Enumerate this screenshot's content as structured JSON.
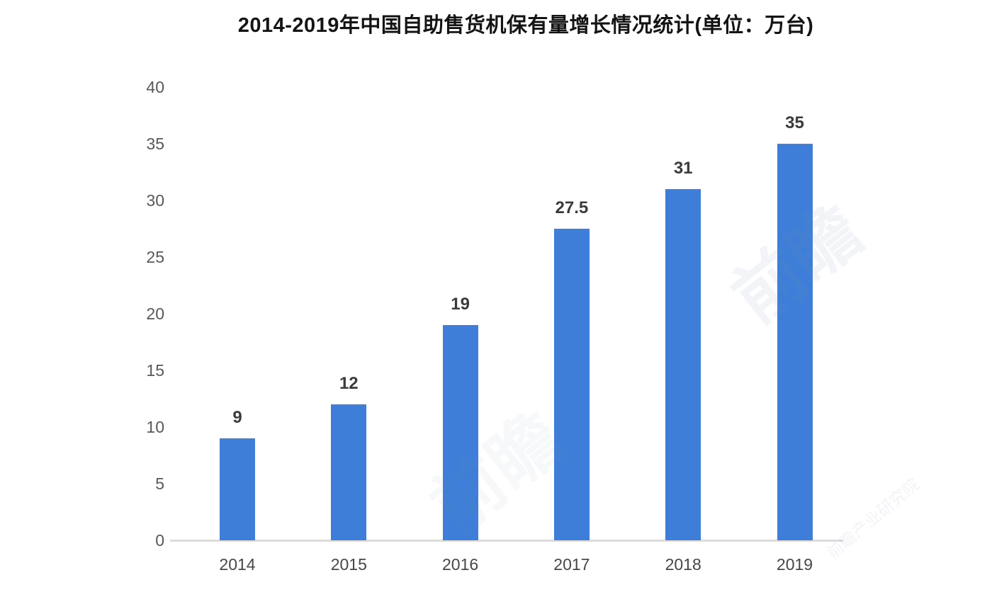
{
  "title": "2014-2019年中国自助售货机保有量增长情况统计(单位：万台)",
  "chart_data": {
    "type": "bar",
    "title": "2014-2019年中国自助售货机保有量增长情况统计(单位：万台)",
    "unit_note": "单位：万台",
    "categories": [
      "2014",
      "2015",
      "2016",
      "2017",
      "2018",
      "2019"
    ],
    "values": [
      9,
      12,
      19,
      27.5,
      31,
      35
    ],
    "value_labels": [
      "9",
      "12",
      "19",
      "27.5",
      "31",
      "35"
    ],
    "xlabel": "",
    "ylabel": "",
    "ylim": [
      0,
      40
    ],
    "yticks": [
      0,
      5,
      10,
      15,
      20,
      25,
      30,
      35,
      40
    ],
    "grid": false,
    "legend": "none",
    "bar_color": "#3e7ed8",
    "bar_top_edge_color": "#5d7ba9",
    "axis_line_color": "#dcdcdc",
    "tick_label_color": "#585858",
    "value_label_color": "#3b3b3b",
    "title_color": "#141414"
  },
  "watermarks": {
    "brand": "前瞻",
    "brand_small": "前瞻产业研究院"
  }
}
